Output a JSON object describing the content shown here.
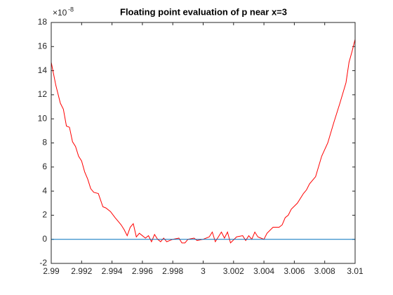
{
  "chart_data": {
    "type": "line",
    "title": "Floating point evaluation of p near x=3",
    "y_multiplier": {
      "base": "×10",
      "exponent": "-8"
    },
    "xlim": [
      2.99,
      3.01
    ],
    "xticks": [
      2.99,
      2.992,
      2.994,
      2.996,
      2.998,
      3,
      3.002,
      3.004,
      3.006,
      3.008,
      3.01
    ],
    "ylim": [
      -2,
      18
    ],
    "yticks": [
      -2,
      0,
      2,
      4,
      6,
      8,
      10,
      12,
      14,
      16,
      18
    ],
    "series": [
      {
        "color": "#ff0000",
        "x": [
          2.99,
          2.9903,
          2.9906,
          2.9908,
          2.991,
          2.9912,
          2.9914,
          2.9916,
          2.9918,
          2.992,
          2.9922,
          2.9924,
          2.9926,
          2.9928,
          2.9931,
          2.9934,
          2.9936,
          2.9939,
          2.9942,
          2.9944,
          2.9946,
          2.9948,
          2.995,
          2.9952,
          2.9954,
          2.9956,
          2.9958,
          2.996,
          2.9962,
          2.9964,
          2.9966,
          2.9968,
          2.997,
          2.9972,
          2.9974,
          2.9976,
          2.9978,
          2.998,
          2.9984,
          2.9986,
          2.9988,
          2.999,
          2.9994,
          2.9996,
          3,
          3.0004,
          3.0006,
          3.0008,
          3.0012,
          3.0014,
          3.0016,
          3.0018,
          3.0022,
          3.0026,
          3.0028,
          3.003,
          3.0032,
          3.0034,
          3.0036,
          3.0038,
          3.004,
          3.0042,
          3.0046,
          3.005,
          3.0052,
          3.0054,
          3.0056,
          3.0058,
          3.0062,
          3.0066,
          3.0068,
          3.007,
          3.0074,
          3.0078,
          3.0082,
          3.0086,
          3.009,
          3.0094,
          3.0096,
          3.0098,
          3.01
        ],
        "values": [
          14.7,
          12.8,
          11.3,
          10.8,
          9.4,
          9.3,
          8.1,
          7.7,
          6.9,
          6.5,
          5.6,
          5.0,
          4.2,
          3.9,
          3.8,
          2.7,
          2.6,
          2.3,
          1.8,
          1.5,
          1.2,
          0.8,
          0.3,
          1.0,
          1.3,
          0.2,
          0.5,
          0.3,
          0.1,
          0.3,
          -0.2,
          0.4,
          0.0,
          -0.2,
          0.1,
          -0.2,
          -0.1,
          0.0,
          0.1,
          -0.3,
          -0.3,
          0.0,
          0.1,
          -0.1,
          0.0,
          0.2,
          0.6,
          -0.2,
          0.6,
          0.1,
          0.6,
          -0.3,
          0.2,
          0.3,
          -0.1,
          0.3,
          0.0,
          0.6,
          0.2,
          0.1,
          0.0,
          0.5,
          1.0,
          1.0,
          1.2,
          1.8,
          2.0,
          2.5,
          3.0,
          3.8,
          4.1,
          4.6,
          5.2,
          6.9,
          8.0,
          9.7,
          11.3,
          13.0,
          14.7,
          15.6,
          16.6
        ]
      },
      {
        "color": "#0072bd",
        "x": [
          2.99,
          3.01
        ],
        "values": [
          0,
          0
        ]
      }
    ]
  }
}
